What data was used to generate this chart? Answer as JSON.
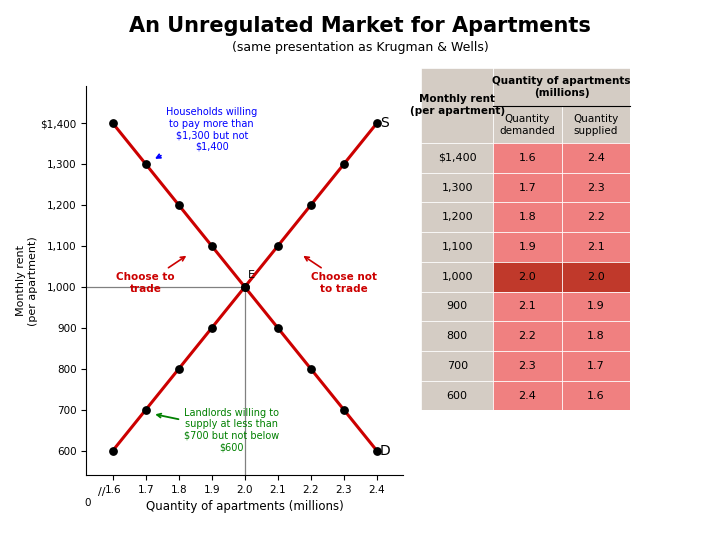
{
  "title": "An Unregulated Market for Apartments",
  "subtitle": "(same presentation as Krugman & Wells)",
  "xlabel": "Quantity of apartments (millions)",
  "ylabel": "Monthly rent\n(per apartment)",
  "rents": [
    1400,
    1300,
    1200,
    1100,
    1000,
    900,
    800,
    700,
    600
  ],
  "qty_demanded": [
    1.6,
    1.7,
    1.8,
    1.9,
    2.0,
    2.1,
    2.2,
    2.3,
    2.4
  ],
  "qty_supplied": [
    2.4,
    2.3,
    2.2,
    2.1,
    2.0,
    1.9,
    1.8,
    1.7,
    1.6
  ],
  "equilibrium_qty": 2.0,
  "equilibrium_rent": 1000,
  "xlim": [
    1.52,
    2.48
  ],
  "ylim": [
    540,
    1490
  ],
  "xticks": [
    1.6,
    1.7,
    1.8,
    1.9,
    2.0,
    2.1,
    2.2,
    2.3,
    2.4
  ],
  "yticks": [
    600,
    700,
    800,
    900,
    1000,
    1100,
    1200,
    1300,
    1400
  ],
  "ytick_labels": [
    "600",
    "700",
    "800",
    "900",
    "1,000",
    "1,100",
    "1,200",
    "1,300",
    "$1,400"
  ],
  "demand_color": "#cc0000",
  "supply_color": "#cc0000",
  "line_width": 2.2,
  "dot_color": "black",
  "dot_size": 28,
  "table_header_bg": "#d4ccc4",
  "table_data_bg": "#f08080",
  "table_eq_bg": "#c0392b",
  "rents_list": [
    "$1,400",
    "1,300",
    "1,200",
    "1,100",
    "1,000",
    "900",
    "800",
    "700",
    "600"
  ],
  "qd_list": [
    "1.6",
    "1.7",
    "1.8",
    "1.9",
    "2.0",
    "2.1",
    "2.2",
    "2.3",
    "2.4"
  ],
  "qs_list": [
    "2.4",
    "2.3",
    "2.2",
    "2.1",
    "2.0",
    "1.9",
    "1.8",
    "1.7",
    "1.6"
  ],
  "eq_row": 4
}
